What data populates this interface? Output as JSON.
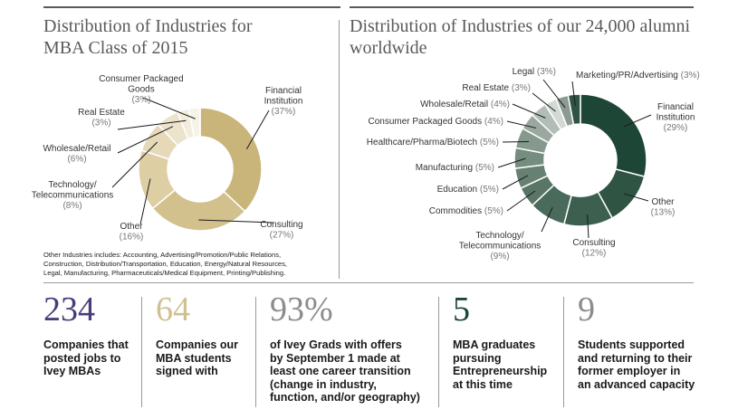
{
  "left_chart": {
    "title_line1": "Distribution of Industries for",
    "title_line2": "MBA Class of 2015",
    "footnote_line1": "Other Industries includes: Accounting, Advertising/Promotion/Public Relations,",
    "footnote_line2": "Construction, Distribution/Transportation, Education, Energy/Natural Resources,",
    "footnote_line3": "Legal, Manufacturing, Pharmaceuticals/Medical Equipment, Printing/Publishing."
  },
  "right_chart": {
    "title_line1": "Distribution of Industries of our 24,000 alumni",
    "title_line2": "worldwide"
  },
  "chart_data": [
    {
      "type": "pie",
      "title": "Distribution of Industries for MBA Class of 2015",
      "categories": [
        "Financial Institution",
        "Consulting",
        "Other",
        "Technology/ Telecommunications",
        "Wholesale/Retail",
        "Real Estate",
        "Consumer Packaged Goods"
      ],
      "values": [
        37,
        27,
        16,
        8,
        6,
        3,
        3
      ],
      "colors": [
        "#c9b57a",
        "#d3c18d",
        "#ddcea4",
        "#e5d9b8",
        "#ece3cb",
        "#f2ecdc",
        "#f7f3e9"
      ],
      "labels": [
        {
          "lines": [
            "Financial",
            "Institution"
          ],
          "pct": "(37%)"
        },
        {
          "lines": [
            "Consulting"
          ],
          "pct": "(27%)"
        },
        {
          "lines": [
            "Other"
          ],
          "pct": "(16%)"
        },
        {
          "lines": [
            "Technology/",
            "Telecommunications"
          ],
          "pct": "(8%)"
        },
        {
          "lines": [
            "Wholesale/Retail"
          ],
          "pct": "(6%)"
        },
        {
          "lines": [
            "Real Estate"
          ],
          "pct": "(3%)"
        },
        {
          "lines": [
            "Consumer Packaged",
            "Goods"
          ],
          "pct": "(3%)"
        }
      ]
    },
    {
      "type": "pie",
      "title": "Distribution of Industries of our 24,000 alumni worldwide",
      "categories": [
        "Financial Institution",
        "Other",
        "Consulting",
        "Technology/ Telecommunications",
        "Commodities",
        "Education",
        "Manufacturing",
        "Healthcare/Pharma/Biotech",
        "Consumer Packaged Goods",
        "Wholesale/Retail",
        "Real Estate",
        "Legal",
        "Marketing/PR/Advertising"
      ],
      "values": [
        29,
        13,
        12,
        9,
        5,
        5,
        5,
        5,
        4,
        4,
        3,
        3,
        3
      ],
      "colors": [
        "#1e4636",
        "#2f5444",
        "#3c5f50",
        "#4a6a5c",
        "#587566",
        "#668172",
        "#758d80",
        "#86998d",
        "#9aa89f",
        "#b2bdb6",
        "#d3dad5",
        "#8c9b91",
        "#2f5444"
      ],
      "labels": [
        {
          "lines": [
            "Financial",
            "Institution"
          ],
          "pct": "(29%)"
        },
        {
          "lines": [
            "Other"
          ],
          "pct": "(13%)"
        },
        {
          "lines": [
            "Consulting"
          ],
          "pct": "(12%)"
        },
        {
          "lines": [
            "Technology/",
            "Telecommunications"
          ],
          "pct": "(9%)"
        },
        {
          "lines": [
            "Commodities"
          ],
          "pct": "(5%)"
        },
        {
          "lines": [
            "Education"
          ],
          "pct": "(5%)"
        },
        {
          "lines": [
            "Manufacturing"
          ],
          "pct": "(5%)"
        },
        {
          "lines": [
            "Healthcare/Pharma/Biotech"
          ],
          "pct": "(5%)"
        },
        {
          "lines": [
            "Consumer Packaged Goods"
          ],
          "pct": "(4%)"
        },
        {
          "lines": [
            "Wholesale/Retail"
          ],
          "pct": "(4%)"
        },
        {
          "lines": [
            "Real Estate"
          ],
          "pct": "(3%)"
        },
        {
          "lines": [
            "Legal"
          ],
          "pct": "(3%)"
        },
        {
          "lines": [
            "Marketing/PR/Advertising"
          ],
          "pct": "(3%)"
        }
      ]
    }
  ],
  "stats": [
    {
      "number": "234",
      "color": "#4a3d7a",
      "description": "Companies that\nposted jobs to\nIvey MBAs"
    },
    {
      "number": "64",
      "color": "#d1c08f",
      "description": "Companies our\nMBA students\nsigned with"
    },
    {
      "number": "93%",
      "color": "#8c8c8c",
      "description": "of Ivey Grads with offers\nby September 1 made at\nleast one career transition\n(change in industry,\nfunction, and/or geography)"
    },
    {
      "number": "5",
      "color": "#1e4636",
      "description": "MBA graduates\npursuing\nEntrepreneurship\nat this time"
    },
    {
      "number": "9",
      "color": "#8c8c8c",
      "description": "Students supported\nand returning to their\nformer employer in\nan advanced capacity"
    }
  ]
}
